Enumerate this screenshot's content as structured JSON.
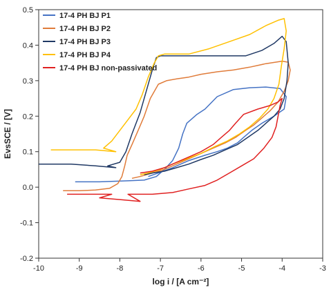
{
  "chart_data": {
    "type": "line",
    "title": "",
    "xlabel": "log i / [A cm⁻²]",
    "ylabel": "EvsSCE / [V]",
    "xlim": [
      -10,
      -3
    ],
    "ylim": [
      -0.2,
      0.5
    ],
    "xticks": [
      -10,
      -9,
      -8,
      -7,
      -6,
      -5,
      -4,
      -3
    ],
    "yticks": [
      -0.2,
      -0.1,
      0.0,
      0.1,
      0.2,
      0.3,
      0.4,
      0.5
    ],
    "xtick_labels": [
      "-10",
      "-9",
      "-8",
      "-7",
      "-6",
      "-5",
      "-4",
      "-3"
    ],
    "ytick_labels": [
      "-0.2",
      "-0.1",
      "0.0",
      "0.1",
      "0.2",
      "0.3",
      "0.4",
      "0.5"
    ],
    "grid": false,
    "legend_position": "top-left",
    "series": [
      {
        "name": "17-4 PH BJ P1",
        "color": "#4472C4",
        "points": [
          [
            -9.1,
            0.015
          ],
          [
            -8.5,
            0.015
          ],
          [
            -7.8,
            0.018
          ],
          [
            -7.4,
            0.02
          ],
          [
            -7.1,
            0.03
          ],
          [
            -6.9,
            0.05
          ],
          [
            -6.7,
            0.075
          ],
          [
            -6.55,
            0.11
          ],
          [
            -6.45,
            0.15
          ],
          [
            -6.35,
            0.18
          ],
          [
            -6.1,
            0.205
          ],
          [
            -5.9,
            0.22
          ],
          [
            -5.6,
            0.255
          ],
          [
            -5.2,
            0.275
          ],
          [
            -4.8,
            0.28
          ],
          [
            -4.4,
            0.282
          ],
          [
            -4.05,
            0.278
          ],
          [
            -3.9,
            0.255
          ],
          [
            -3.95,
            0.22
          ],
          [
            -4.2,
            0.2
          ],
          [
            -4.5,
            0.18
          ],
          [
            -4.75,
            0.16
          ],
          [
            -4.95,
            0.14
          ],
          [
            -5.1,
            0.125
          ],
          [
            -5.35,
            0.11
          ],
          [
            -5.6,
            0.1
          ],
          [
            -5.9,
            0.09
          ],
          [
            -6.3,
            0.075
          ],
          [
            -6.7,
            0.055
          ],
          [
            -7.05,
            0.04
          ],
          [
            -7.3,
            0.03
          ]
        ]
      },
      {
        "name": "17-4 PH BJ P2",
        "color": "#E07B39",
        "points": [
          [
            -9.4,
            -0.01
          ],
          [
            -9.0,
            -0.01
          ],
          [
            -8.6,
            -0.008
          ],
          [
            -8.25,
            -0.003
          ],
          [
            -8.05,
            0.01
          ],
          [
            -7.95,
            0.03
          ],
          [
            -7.88,
            0.06
          ],
          [
            -7.82,
            0.09
          ],
          [
            -7.7,
            0.12
          ],
          [
            -7.55,
            0.16
          ],
          [
            -7.4,
            0.2
          ],
          [
            -7.25,
            0.25
          ],
          [
            -7.05,
            0.29
          ],
          [
            -6.85,
            0.3
          ],
          [
            -6.6,
            0.305
          ],
          [
            -6.3,
            0.31
          ],
          [
            -6.0,
            0.318
          ],
          [
            -5.6,
            0.325
          ],
          [
            -5.2,
            0.33
          ],
          [
            -4.8,
            0.338
          ],
          [
            -4.4,
            0.348
          ],
          [
            -4.0,
            0.355
          ],
          [
            -3.85,
            0.352
          ],
          [
            -3.8,
            0.33
          ],
          [
            -3.85,
            0.3
          ],
          [
            -3.95,
            0.27
          ],
          [
            -4.1,
            0.24
          ],
          [
            -4.3,
            0.215
          ],
          [
            -4.5,
            0.195
          ],
          [
            -4.7,
            0.175
          ],
          [
            -4.9,
            0.16
          ],
          [
            -5.15,
            0.14
          ],
          [
            -5.4,
            0.125
          ],
          [
            -5.7,
            0.11
          ],
          [
            -6.0,
            0.095
          ],
          [
            -6.3,
            0.08
          ],
          [
            -6.6,
            0.065
          ],
          [
            -6.9,
            0.05
          ],
          [
            -7.2,
            0.04
          ],
          [
            -7.5,
            0.03
          ],
          [
            -7.7,
            0.025
          ]
        ]
      },
      {
        "name": "17-4 PH BJ P3",
        "color": "#1F3864",
        "points": [
          [
            -10.0,
            0.065
          ],
          [
            -9.2,
            0.065
          ],
          [
            -8.6,
            0.06
          ],
          [
            -8.1,
            0.055
          ],
          [
            -8.3,
            0.06
          ],
          [
            -8.0,
            0.07
          ],
          [
            -7.85,
            0.1
          ],
          [
            -7.7,
            0.15
          ],
          [
            -7.5,
            0.21
          ],
          [
            -7.35,
            0.27
          ],
          [
            -7.2,
            0.33
          ],
          [
            -7.1,
            0.365
          ],
          [
            -7.0,
            0.37
          ],
          [
            -6.5,
            0.37
          ],
          [
            -6.0,
            0.37
          ],
          [
            -5.5,
            0.37
          ],
          [
            -4.9,
            0.37
          ],
          [
            -4.5,
            0.385
          ],
          [
            -4.2,
            0.405
          ],
          [
            -4.0,
            0.425
          ],
          [
            -3.9,
            0.41
          ],
          [
            -3.85,
            0.35
          ],
          [
            -3.88,
            0.3
          ],
          [
            -3.95,
            0.25
          ],
          [
            -4.05,
            0.22
          ],
          [
            -4.2,
            0.2
          ],
          [
            -4.4,
            0.18
          ],
          [
            -4.6,
            0.16
          ],
          [
            -4.85,
            0.14
          ],
          [
            -5.1,
            0.12
          ],
          [
            -5.4,
            0.105
          ],
          [
            -5.7,
            0.09
          ],
          [
            -6.0,
            0.078
          ],
          [
            -6.3,
            0.065
          ],
          [
            -6.6,
            0.055
          ],
          [
            -6.9,
            0.045
          ],
          [
            -7.2,
            0.04
          ],
          [
            -7.4,
            0.035
          ]
        ]
      },
      {
        "name": "17-4 PH BJ P4",
        "color": "#FFC000",
        "points": [
          [
            -9.7,
            0.105
          ],
          [
            -9.0,
            0.105
          ],
          [
            -8.6,
            0.105
          ],
          [
            -8.1,
            0.1
          ],
          [
            -8.4,
            0.11
          ],
          [
            -8.2,
            0.13
          ],
          [
            -8.0,
            0.16
          ],
          [
            -7.8,
            0.19
          ],
          [
            -7.6,
            0.22
          ],
          [
            -7.45,
            0.26
          ],
          [
            -7.3,
            0.31
          ],
          [
            -7.15,
            0.35
          ],
          [
            -7.05,
            0.37
          ],
          [
            -6.9,
            0.375
          ],
          [
            -6.3,
            0.375
          ],
          [
            -5.8,
            0.39
          ],
          [
            -5.3,
            0.41
          ],
          [
            -4.8,
            0.43
          ],
          [
            -4.4,
            0.455
          ],
          [
            -4.1,
            0.47
          ],
          [
            -3.95,
            0.475
          ],
          [
            -3.9,
            0.44
          ],
          [
            -3.95,
            0.39
          ],
          [
            -4.02,
            0.34
          ],
          [
            -4.08,
            0.29
          ],
          [
            -4.2,
            0.25
          ],
          [
            -4.35,
            0.22
          ],
          [
            -4.55,
            0.195
          ],
          [
            -4.8,
            0.17
          ],
          [
            -5.05,
            0.15
          ],
          [
            -5.35,
            0.13
          ],
          [
            -5.65,
            0.115
          ],
          [
            -6.0,
            0.095
          ],
          [
            -6.35,
            0.08
          ],
          [
            -6.7,
            0.065
          ],
          [
            -7.0,
            0.05
          ],
          [
            -7.3,
            0.04
          ],
          [
            -7.5,
            0.035
          ]
        ]
      },
      {
        "name": "17-4 PH BJ non-passivated",
        "color": "#E02020",
        "points": [
          [
            -9.3,
            -0.02
          ],
          [
            -8.8,
            -0.02
          ],
          [
            -8.2,
            -0.02
          ],
          [
            -8.5,
            -0.03
          ],
          [
            -8.0,
            -0.035
          ],
          [
            -7.5,
            -0.04
          ],
          [
            -7.8,
            -0.02
          ],
          [
            -7.2,
            -0.02
          ],
          [
            -6.7,
            -0.015
          ],
          [
            -6.3,
            -0.005
          ],
          [
            -5.9,
            0.005
          ],
          [
            -5.6,
            0.02
          ],
          [
            -5.3,
            0.04
          ],
          [
            -5.0,
            0.06
          ],
          [
            -4.7,
            0.08
          ],
          [
            -4.45,
            0.11
          ],
          [
            -4.25,
            0.14
          ],
          [
            -4.15,
            0.17
          ],
          [
            -4.1,
            0.2
          ],
          [
            -4.05,
            0.23
          ],
          [
            -4.0,
            0.25
          ],
          [
            -4.1,
            0.24
          ],
          [
            -4.3,
            0.23
          ],
          [
            -4.6,
            0.22
          ],
          [
            -4.95,
            0.205
          ],
          [
            -5.15,
            0.18
          ],
          [
            -5.3,
            0.16
          ],
          [
            -5.5,
            0.14
          ],
          [
            -5.7,
            0.12
          ],
          [
            -6.0,
            0.1
          ],
          [
            -6.3,
            0.085
          ],
          [
            -6.6,
            0.07
          ],
          [
            -6.9,
            0.055
          ],
          [
            -7.2,
            0.045
          ],
          [
            -7.5,
            0.04
          ]
        ]
      }
    ]
  }
}
